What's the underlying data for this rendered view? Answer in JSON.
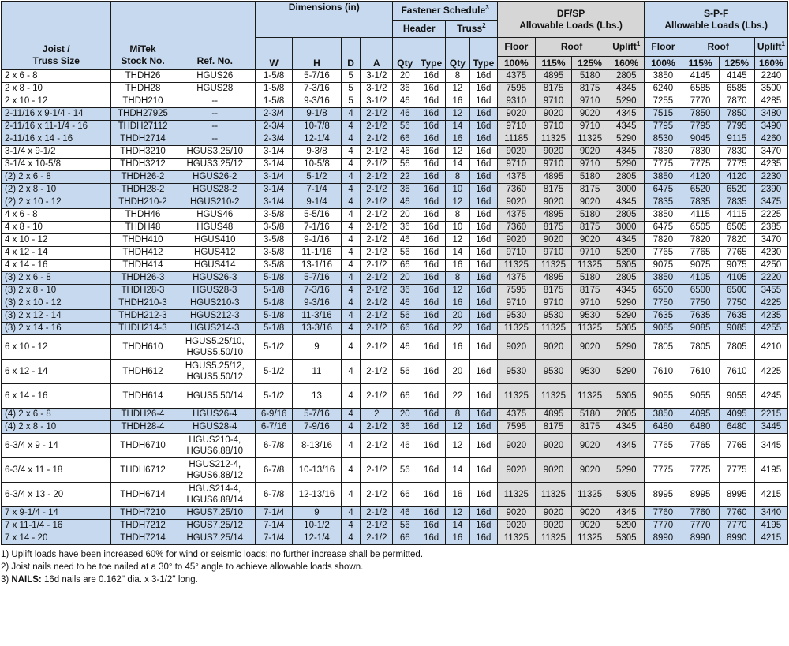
{
  "header": {
    "joist_truss_size": [
      "Joist /",
      "Truss Size"
    ],
    "mitek_stock_no": [
      "MiTek",
      "Stock No."
    ],
    "ref_no": "Ref. No.",
    "dimensions": "Dimensions (in)",
    "dim_cols": [
      "W",
      "H",
      "D",
      "A"
    ],
    "fastener_schedule": "Fastener Schedule",
    "fastener_note_ref": "3",
    "header_group": "Header",
    "truss_group": "Truss",
    "truss_note_ref": "2",
    "qty": "Qty",
    "type": "Type",
    "dfsp_title": [
      "DF/SP",
      "Allowable Loads (Lbs.)"
    ],
    "spf_title": [
      "S-P-F",
      "Allowable Loads (Lbs.)"
    ],
    "floor": "Floor",
    "roof": "Roof",
    "uplift": "Uplift",
    "uplift_note_ref": "1",
    "pcts": [
      "100%",
      "115%",
      "125%",
      "160%"
    ]
  },
  "rows": [
    {
      "size": "2 x 6 - 8",
      "stock": "THDH26",
      "ref": "HGUS26",
      "w": "1-5/8",
      "h": "5-7/16",
      "d": "5",
      "a": "3-1/2",
      "hq": "20",
      "ht": "16d",
      "tq": "8",
      "tt": "16d",
      "df": [
        "4375",
        "4895",
        "5180",
        "2805"
      ],
      "spf": [
        "3850",
        "4145",
        "4145",
        "2240"
      ]
    },
    {
      "size": "2 x 8 - 10",
      "stock": "THDH28",
      "ref": "HGUS28",
      "w": "1-5/8",
      "h": "7-3/16",
      "d": "5",
      "a": "3-1/2",
      "hq": "36",
      "ht": "16d",
      "tq": "12",
      "tt": "16d",
      "df": [
        "7595",
        "8175",
        "8175",
        "4345"
      ],
      "spf": [
        "6240",
        "6585",
        "6585",
        "3500"
      ]
    },
    {
      "size": "2 x 10 - 12",
      "stock": "THDH210",
      "ref": "--",
      "w": "1-5/8",
      "h": "9-3/16",
      "d": "5",
      "a": "3-1/2",
      "hq": "46",
      "ht": "16d",
      "tq": "16",
      "tt": "16d",
      "df": [
        "9310",
        "9710",
        "9710",
        "5290"
      ],
      "spf": [
        "7255",
        "7770",
        "7870",
        "4285"
      ]
    },
    {
      "size": "2-11/16 x 9-1/4 - 14",
      "stock": "THDH27925",
      "ref": "--",
      "w": "2-3/4",
      "h": "9-1/8",
      "d": "4",
      "a": "2-1/2",
      "hq": "46",
      "ht": "16d",
      "tq": "12",
      "tt": "16d",
      "df": [
        "9020",
        "9020",
        "9020",
        "4345"
      ],
      "spf": [
        "7515",
        "7850",
        "7850",
        "3480"
      ]
    },
    {
      "size": "2-11/16 x 11-1/4 - 16",
      "stock": "THDH27112",
      "ref": "--",
      "w": "2-3/4",
      "h": "10-7/8",
      "d": "4",
      "a": "2-1/2",
      "hq": "56",
      "ht": "16d",
      "tq": "14",
      "tt": "16d",
      "df": [
        "9710",
        "9710",
        "9710",
        "4345"
      ],
      "spf": [
        "7795",
        "7795",
        "7795",
        "3490"
      ]
    },
    {
      "size": "2-11/16 x 14 - 16",
      "stock": "THDH2714",
      "ref": "--",
      "w": "2-3/4",
      "h": "12-1/4",
      "d": "4",
      "a": "2-1/2",
      "hq": "66",
      "ht": "16d",
      "tq": "16",
      "tt": "16d",
      "df": [
        "11185",
        "11325",
        "11325",
        "5290"
      ],
      "spf": [
        "8530",
        "9045",
        "9115",
        "4260"
      ]
    },
    {
      "size": "3-1/4 x 9-1/2",
      "stock": "THDH3210",
      "ref": "HGUS3.25/10",
      "w": "3-1/4",
      "h": "9-3/8",
      "d": "4",
      "a": "2-1/2",
      "hq": "46",
      "ht": "16d",
      "tq": "12",
      "tt": "16d",
      "df": [
        "9020",
        "9020",
        "9020",
        "4345"
      ],
      "spf": [
        "7830",
        "7830",
        "7830",
        "3470"
      ]
    },
    {
      "size": "3-1/4 x 10-5/8",
      "stock": "THDH3212",
      "ref": "HGUS3.25/12",
      "w": "3-1/4",
      "h": "10-5/8",
      "d": "4",
      "a": "2-1/2",
      "hq": "56",
      "ht": "16d",
      "tq": "14",
      "tt": "16d",
      "df": [
        "9710",
        "9710",
        "9710",
        "5290"
      ],
      "spf": [
        "7775",
        "7775",
        "7775",
        "4235"
      ]
    },
    {
      "size": "(2) 2 x 6 - 8",
      "stock": "THDH26-2",
      "ref": "HGUS26-2",
      "w": "3-1/4",
      "h": "5-1/2",
      "d": "4",
      "a": "2-1/2",
      "hq": "22",
      "ht": "16d",
      "tq": "8",
      "tt": "16d",
      "df": [
        "4375",
        "4895",
        "5180",
        "2805"
      ],
      "spf": [
        "3850",
        "4120",
        "4120",
        "2230"
      ]
    },
    {
      "size": "(2) 2 x 8 - 10",
      "stock": "THDH28-2",
      "ref": "HGUS28-2",
      "w": "3-1/4",
      "h": "7-1/4",
      "d": "4",
      "a": "2-1/2",
      "hq": "36",
      "ht": "16d",
      "tq": "10",
      "tt": "16d",
      "df": [
        "7360",
        "8175",
        "8175",
        "3000"
      ],
      "spf": [
        "6475",
        "6520",
        "6520",
        "2390"
      ]
    },
    {
      "size": "(2) 2 x 10 - 12",
      "stock": "THDH210-2",
      "ref": "HGUS210-2",
      "w": "3-1/4",
      "h": "9-1/4",
      "d": "4",
      "a": "2-1/2",
      "hq": "46",
      "ht": "16d",
      "tq": "12",
      "tt": "16d",
      "df": [
        "9020",
        "9020",
        "9020",
        "4345"
      ],
      "spf": [
        "7835",
        "7835",
        "7835",
        "3475"
      ]
    },
    {
      "size": "4 x 6 - 8",
      "stock": "THDH46",
      "ref": "HGUS46",
      "w": "3-5/8",
      "h": "5-5/16",
      "d": "4",
      "a": "2-1/2",
      "hq": "20",
      "ht": "16d",
      "tq": "8",
      "tt": "16d",
      "df": [
        "4375",
        "4895",
        "5180",
        "2805"
      ],
      "spf": [
        "3850",
        "4115",
        "4115",
        "2225"
      ]
    },
    {
      "size": "4 x 8 - 10",
      "stock": "THDH48",
      "ref": "HGUS48",
      "w": "3-5/8",
      "h": "7-1/16",
      "d": "4",
      "a": "2-1/2",
      "hq": "36",
      "ht": "16d",
      "tq": "10",
      "tt": "16d",
      "df": [
        "7360",
        "8175",
        "8175",
        "3000"
      ],
      "spf": [
        "6475",
        "6505",
        "6505",
        "2385"
      ]
    },
    {
      "size": "4 x 10 - 12",
      "stock": "THDH410",
      "ref": "HGUS410",
      "w": "3-5/8",
      "h": "9-1/16",
      "d": "4",
      "a": "2-1/2",
      "hq": "46",
      "ht": "16d",
      "tq": "12",
      "tt": "16d",
      "df": [
        "9020",
        "9020",
        "9020",
        "4345"
      ],
      "spf": [
        "7820",
        "7820",
        "7820",
        "3470"
      ]
    },
    {
      "size": "4 x 12 - 14",
      "stock": "THDH412",
      "ref": "HGUS412",
      "w": "3-5/8",
      "h": "11-1/16",
      "d": "4",
      "a": "2-1/2",
      "hq": "56",
      "ht": "16d",
      "tq": "14",
      "tt": "16d",
      "df": [
        "9710",
        "9710",
        "9710",
        "5290"
      ],
      "spf": [
        "7765",
        "7765",
        "7765",
        "4230"
      ]
    },
    {
      "size": "4 x 14 - 16",
      "stock": "THDH414",
      "ref": "HGUS414",
      "w": "3-5/8",
      "h": "13-1/16",
      "d": "4",
      "a": "2-1/2",
      "hq": "66",
      "ht": "16d",
      "tq": "16",
      "tt": "16d",
      "df": [
        "11325",
        "11325",
        "11325",
        "5305"
      ],
      "spf": [
        "9075",
        "9075",
        "9075",
        "4250"
      ]
    },
    {
      "size": "(3) 2 x 6 - 8",
      "stock": "THDH26-3",
      "ref": "HGUS26-3",
      "w": "5-1/8",
      "h": "5-7/16",
      "d": "4",
      "a": "2-1/2",
      "hq": "20",
      "ht": "16d",
      "tq": "8",
      "tt": "16d",
      "df": [
        "4375",
        "4895",
        "5180",
        "2805"
      ],
      "spf": [
        "3850",
        "4105",
        "4105",
        "2220"
      ]
    },
    {
      "size": "(3) 2 x 8 - 10",
      "stock": "THDH28-3",
      "ref": "HGUS28-3",
      "w": "5-1/8",
      "h": "7-3/16",
      "d": "4",
      "a": "2-1/2",
      "hq": "36",
      "ht": "16d",
      "tq": "12",
      "tt": "16d",
      "df": [
        "7595",
        "8175",
        "8175",
        "4345"
      ],
      "spf": [
        "6500",
        "6500",
        "6500",
        "3455"
      ]
    },
    {
      "size": "(3) 2 x 10 - 12",
      "stock": "THDH210-3",
      "ref": "HGUS210-3",
      "w": "5-1/8",
      "h": "9-3/16",
      "d": "4",
      "a": "2-1/2",
      "hq": "46",
      "ht": "16d",
      "tq": "16",
      "tt": "16d",
      "df": [
        "9710",
        "9710",
        "9710",
        "5290"
      ],
      "spf": [
        "7750",
        "7750",
        "7750",
        "4225"
      ]
    },
    {
      "size": "(3) 2 x 12 - 14",
      "stock": "THDH212-3",
      "ref": "HGUS212-3",
      "w": "5-1/8",
      "h": "11-3/16",
      "d": "4",
      "a": "2-1/2",
      "hq": "56",
      "ht": "16d",
      "tq": "20",
      "tt": "16d",
      "df": [
        "9530",
        "9530",
        "9530",
        "5290"
      ],
      "spf": [
        "7635",
        "7635",
        "7635",
        "4235"
      ]
    },
    {
      "size": "(3) 2 x 14 - 16",
      "stock": "THDH214-3",
      "ref": "HGUS214-3",
      "w": "5-1/8",
      "h": "13-3/16",
      "d": "4",
      "a": "2-1/2",
      "hq": "66",
      "ht": "16d",
      "tq": "22",
      "tt": "16d",
      "df": [
        "11325",
        "11325",
        "11325",
        "5305"
      ],
      "spf": [
        "9085",
        "9085",
        "9085",
        "4255"
      ]
    },
    {
      "size": "6 x 10 - 12",
      "stock": "THDH610",
      "ref": "HGUS5.25/10, HGUS5.50/10",
      "w": "5-1/2",
      "h": "9",
      "d": "4",
      "a": "2-1/2",
      "hq": "46",
      "ht": "16d",
      "tq": "16",
      "tt": "16d",
      "df": [
        "9020",
        "9020",
        "9020",
        "5290"
      ],
      "spf": [
        "7805",
        "7805",
        "7805",
        "4210"
      ]
    },
    {
      "size": "6 x 12 - 14",
      "stock": "THDH612",
      "ref": "HGUS5.25/12, HGUS5.50/12",
      "w": "5-1/2",
      "h": "11",
      "d": "4",
      "a": "2-1/2",
      "hq": "56",
      "ht": "16d",
      "tq": "20",
      "tt": "16d",
      "df": [
        "9530",
        "9530",
        "9530",
        "5290"
      ],
      "spf": [
        "7610",
        "7610",
        "7610",
        "4225"
      ]
    },
    {
      "size": "6 x 14 - 16",
      "stock": "THDH614",
      "ref": "HGUS5.50/14",
      "w": "5-1/2",
      "h": "13",
      "d": "4",
      "a": "2-1/2",
      "hq": "66",
      "ht": "16d",
      "tq": "22",
      "tt": "16d",
      "df": [
        "11325",
        "11325",
        "11325",
        "5305"
      ],
      "spf": [
        "9055",
        "9055",
        "9055",
        "4245"
      ]
    },
    {
      "size": "(4) 2 x 6 - 8",
      "stock": "THDH26-4",
      "ref": "HGUS26-4",
      "w": "6-9/16",
      "h": "5-7/16",
      "d": "4",
      "a": "2",
      "hq": "20",
      "ht": "16d",
      "tq": "8",
      "tt": "16d",
      "df": [
        "4375",
        "4895",
        "5180",
        "2805"
      ],
      "spf": [
        "3850",
        "4095",
        "4095",
        "2215"
      ]
    },
    {
      "size": "(4) 2 x 8 - 10",
      "stock": "THDH28-4",
      "ref": "HGUS28-4",
      "w": "6-7/16",
      "h": "7-9/16",
      "d": "4",
      "a": "2-1/2",
      "hq": "36",
      "ht": "16d",
      "tq": "12",
      "tt": "16d",
      "df": [
        "7595",
        "8175",
        "8175",
        "4345"
      ],
      "spf": [
        "6480",
        "6480",
        "6480",
        "3445"
      ]
    },
    {
      "size": "6-3/4 x 9 - 14",
      "stock": "THDH6710",
      "ref": "HGUS210-4, HGUS6.88/10",
      "w": "6-7/8",
      "h": "8-13/16",
      "d": "4",
      "a": "2-1/2",
      "hq": "46",
      "ht": "16d",
      "tq": "12",
      "tt": "16d",
      "df": [
        "9020",
        "9020",
        "9020",
        "4345"
      ],
      "spf": [
        "7765",
        "7765",
        "7765",
        "3445"
      ]
    },
    {
      "size": "6-3/4 x 11 - 18",
      "stock": "THDH6712",
      "ref": "HGUS212-4, HGUS6.88/12",
      "w": "6-7/8",
      "h": "10-13/16",
      "d": "4",
      "a": "2-1/2",
      "hq": "56",
      "ht": "16d",
      "tq": "14",
      "tt": "16d",
      "df": [
        "9020",
        "9020",
        "9020",
        "5290"
      ],
      "spf": [
        "7775",
        "7775",
        "7775",
        "4195"
      ]
    },
    {
      "size": "6-3/4 x 13 - 20",
      "stock": "THDH6714",
      "ref": "HGUS214-4, HGUS6.88/14",
      "w": "6-7/8",
      "h": "12-13/16",
      "d": "4",
      "a": "2-1/2",
      "hq": "66",
      "ht": "16d",
      "tq": "16",
      "tt": "16d",
      "df": [
        "11325",
        "11325",
        "11325",
        "5305"
      ],
      "spf": [
        "8995",
        "8995",
        "8995",
        "4215"
      ]
    },
    {
      "size": "7 x 9-1/4 - 14",
      "stock": "THDH7210",
      "ref": "HGUS7.25/10",
      "w": "7-1/4",
      "h": "9",
      "d": "4",
      "a": "2-1/2",
      "hq": "46",
      "ht": "16d",
      "tq": "12",
      "tt": "16d",
      "df": [
        "9020",
        "9020",
        "9020",
        "4345"
      ],
      "spf": [
        "7760",
        "7760",
        "7760",
        "3440"
      ]
    },
    {
      "size": "7 x 11-1/4 - 16",
      "stock": "THDH7212",
      "ref": "HGUS7.25/12",
      "w": "7-1/4",
      "h": "10-1/2",
      "d": "4",
      "a": "2-1/2",
      "hq": "56",
      "ht": "16d",
      "tq": "14",
      "tt": "16d",
      "df": [
        "9020",
        "9020",
        "9020",
        "5290"
      ],
      "spf": [
        "7770",
        "7770",
        "7770",
        "4195"
      ]
    },
    {
      "size": "7 x 14 - 20",
      "stock": "THDH7214",
      "ref": "HGUS7.25/14",
      "w": "7-1/4",
      "h": "12-1/4",
      "d": "4",
      "a": "2-1/2",
      "hq": "66",
      "ht": "16d",
      "tq": "16",
      "tt": "16d",
      "df": [
        "11325",
        "11325",
        "11325",
        "5305"
      ],
      "spf": [
        "8990",
        "8990",
        "8990",
        "4215"
      ]
    }
  ],
  "shaded_rows": [
    3,
    4,
    5,
    8,
    9,
    10,
    16,
    17,
    18,
    19,
    20,
    24,
    25,
    29,
    30,
    31
  ],
  "tall_rows": [
    21,
    22,
    23,
    26,
    27,
    28
  ],
  "notes": {
    "n1": "1) Uplift loads have been increased 60% for wind or seismic loads; no further increase shall be permitted.",
    "n2": "2) Joist nails need to be toe nailed at a 30° to 45° angle to achieve allowable loads shown.",
    "n3_prefix": "3) ",
    "n3_bold": "NAILS:",
    "n3_text": " 16d nails are 0.162'' dia. x 3-1/2'' long."
  }
}
